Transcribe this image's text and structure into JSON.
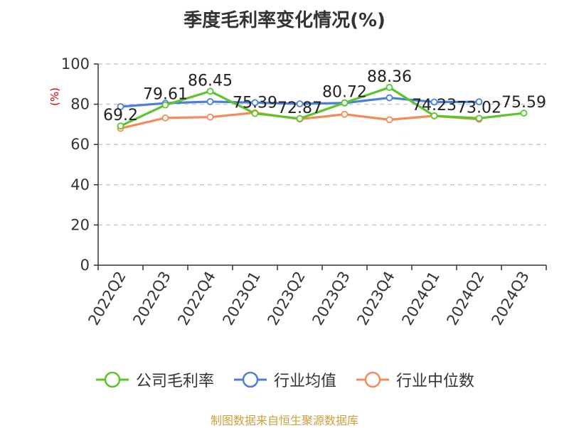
{
  "chart_data": {
    "type": "line",
    "title": "季度毛利率变化情况(%)",
    "ylabel": "(%)",
    "xlabel": "",
    "categories": [
      "2022Q2",
      "2022Q3",
      "2022Q4",
      "2023Q1",
      "2023Q2",
      "2023Q3",
      "2023Q4",
      "2024Q1",
      "2024Q2",
      "2024Q3"
    ],
    "ylim": [
      0,
      100
    ],
    "yticks": [
      0,
      20,
      40,
      60,
      80,
      100
    ],
    "grid": true,
    "legend_position": "bottom",
    "series": [
      {
        "name": "公司毛利率",
        "color": "#5cc42c",
        "values": [
          69.2,
          79.61,
          86.45,
          75.39,
          72.87,
          80.72,
          88.36,
          74.23,
          73.02,
          75.59
        ],
        "labels": [
          "69.2",
          "79.61",
          "86.45",
          "75.39",
          "72.87",
          "80.72",
          "88.36",
          "74.23",
          "73.02",
          "75.59"
        ]
      },
      {
        "name": "行业均值",
        "color": "#4a7fdc",
        "values": [
          78.8,
          80.5,
          81.3,
          80.8,
          80.2,
          80.6,
          83.2,
          81.1,
          81.2,
          null
        ]
      },
      {
        "name": "行业中位数",
        "color": "#f28c5a",
        "values": [
          68.0,
          73.2,
          73.6,
          75.8,
          72.6,
          75.0,
          72.3,
          74.2,
          72.5,
          null
        ]
      }
    ]
  },
  "source_text": "制图数据来自恒生聚源数据库"
}
